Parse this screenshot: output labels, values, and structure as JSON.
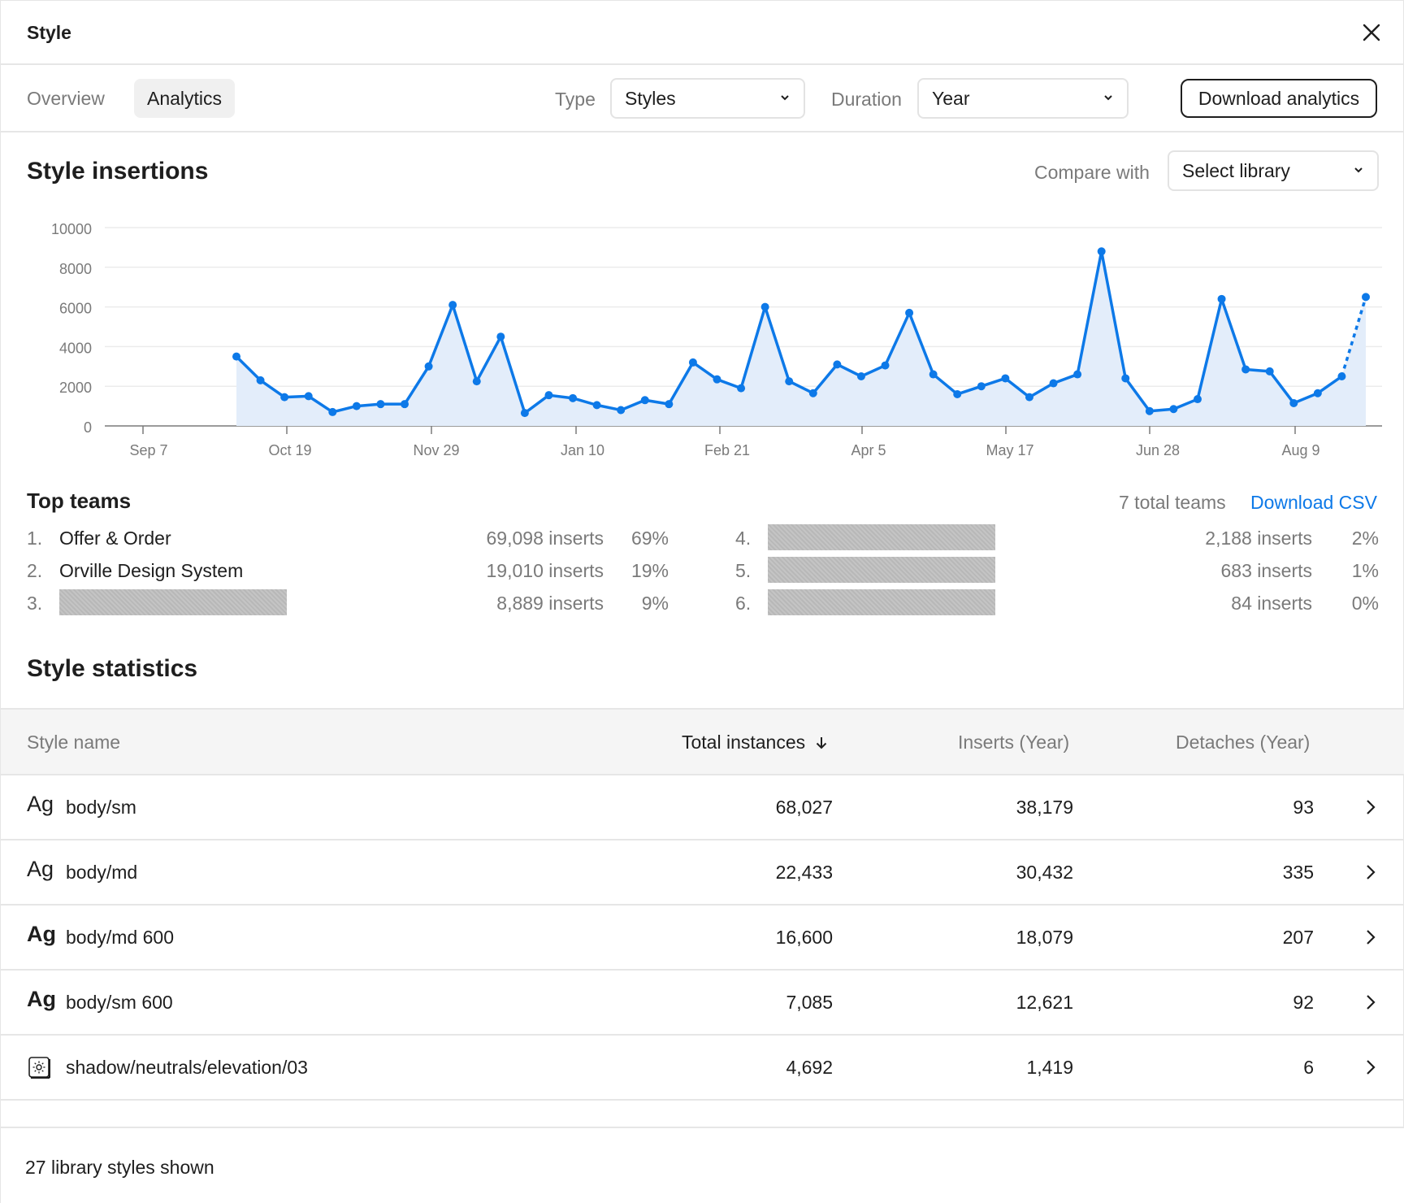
{
  "header": {
    "title": "Style"
  },
  "tabs": [
    {
      "label": "Overview",
      "active": false
    },
    {
      "label": "Analytics",
      "active": true
    }
  ],
  "filters": {
    "type_label": "Type",
    "type_value": "Styles",
    "duration_label": "Duration",
    "duration_value": "Year",
    "download_label": "Download analytics"
  },
  "insertions": {
    "title": "Style insertions",
    "compare_label": "Compare with",
    "compare_value": "Select library"
  },
  "chart_data": {
    "type": "area",
    "title": "Style insertions",
    "xlabel": "",
    "ylabel": "",
    "ylim": [
      0,
      10000
    ],
    "y_ticks": [
      0,
      2000,
      4000,
      6000,
      8000,
      10000
    ],
    "x_tick_labels": [
      "Sep 7",
      "Oct 19",
      "Nov 29",
      "Jan 10",
      "Feb 21",
      "Apr 5",
      "May 17",
      "Jun 28",
      "Aug 9"
    ],
    "grid": true,
    "color": "#0d79e8",
    "fill": "#e3edfa",
    "last_segment_dashed": true,
    "values": [
      3500,
      2300,
      1450,
      1500,
      700,
      1000,
      1100,
      1100,
      3000,
      6100,
      2250,
      4500,
      650,
      1550,
      1400,
      1050,
      800,
      1300,
      1100,
      3200,
      2350,
      1900,
      6000,
      2250,
      1650,
      3100,
      2500,
      3050,
      5700,
      2600,
      1600,
      2000,
      2400,
      1450,
      2150,
      2600,
      8800,
      2400,
      750,
      850,
      1350,
      6400,
      2850,
      2750,
      1150,
      1650,
      2500,
      6500
    ]
  },
  "teams": {
    "title": "Top teams",
    "total": "7 total teams",
    "download_csv": "Download CSV",
    "rows": [
      {
        "rank": "1.",
        "name": "Offer & Order",
        "redacted": false,
        "inserts": "69,098 inserts",
        "pct": "69%"
      },
      {
        "rank": "2.",
        "name": "Orville Design System",
        "redacted": false,
        "inserts": "19,010 inserts",
        "pct": "19%"
      },
      {
        "rank": "3.",
        "name": "",
        "redacted": true,
        "inserts": "8,889 inserts",
        "pct": "9%"
      },
      {
        "rank": "4.",
        "name": "",
        "redacted": true,
        "inserts": "2,188 inserts",
        "pct": "2%"
      },
      {
        "rank": "5.",
        "name": "",
        "redacted": true,
        "inserts": "683 inserts",
        "pct": "1%"
      },
      {
        "rank": "6.",
        "name": "",
        "redacted": true,
        "inserts": "84 inserts",
        "pct": "0%"
      }
    ]
  },
  "statistics": {
    "title": "Style statistics",
    "columns": {
      "name": "Style name",
      "total": "Total instances",
      "sort_icon": "arrow-down-icon",
      "inserts": "Inserts (Year)",
      "detaches": "Detaches (Year)"
    },
    "rows": [
      {
        "glyph": "Ag",
        "kind": "text",
        "name": "body/sm",
        "total": "68,027",
        "inserts": "38,179",
        "detaches": "93"
      },
      {
        "glyph": "Ag",
        "kind": "text",
        "name": "body/md",
        "total": "22,433",
        "inserts": "30,432",
        "detaches": "335"
      },
      {
        "glyph": "Ag",
        "kind": "text-bold",
        "name": "body/md 600",
        "total": "16,600",
        "inserts": "18,079",
        "detaches": "207"
      },
      {
        "glyph": "Ag",
        "kind": "text-bold",
        "name": "body/sm 600",
        "total": "7,085",
        "inserts": "12,621",
        "detaches": "92"
      },
      {
        "glyph": "",
        "kind": "effect",
        "name": "shadow/neutrals/elevation/03",
        "total": "4,692",
        "inserts": "1,419",
        "detaches": "6"
      }
    ]
  },
  "footer": {
    "text": "27 library styles shown"
  }
}
